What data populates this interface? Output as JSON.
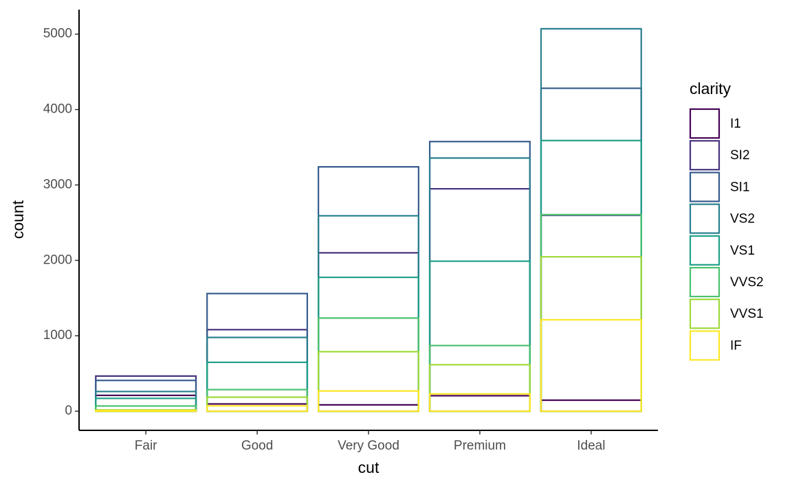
{
  "chart_data": {
    "type": "bar",
    "x_label": "cut",
    "y_label": "count",
    "legend_title": "clarity",
    "categories": [
      "Fair",
      "Good",
      "Very Good",
      "Premium",
      "Ideal"
    ],
    "series": [
      {
        "name": "I1",
        "color": "#440154",
        "values": [
          210,
          96,
          84,
          205,
          146
        ]
      },
      {
        "name": "SI2",
        "color": "#46337E",
        "values": [
          466,
          1081,
          2100,
          2949,
          2598
        ]
      },
      {
        "name": "SI1",
        "color": "#365C8D",
        "values": [
          408,
          1560,
          3240,
          3575,
          4282
        ]
      },
      {
        "name": "VS2",
        "color": "#277F8E",
        "values": [
          261,
          978,
          2591,
          3357,
          5071
        ]
      },
      {
        "name": "VS1",
        "color": "#1FA187",
        "values": [
          170,
          648,
          1775,
          1989,
          3589
        ]
      },
      {
        "name": "VVS2",
        "color": "#4AC16D",
        "values": [
          69,
          286,
          1235,
          870,
          2606
        ]
      },
      {
        "name": "VVS1",
        "color": "#9FDA3A",
        "values": [
          17,
          186,
          789,
          616,
          2047
        ]
      },
      {
        "name": "IF",
        "color": "#FDE725",
        "values": [
          9,
          71,
          268,
          230,
          1212
        ]
      }
    ],
    "ylim": [
      -254,
      5325
    ],
    "yticks": [
      0,
      1000,
      2000,
      3000,
      4000,
      5000
    ]
  }
}
